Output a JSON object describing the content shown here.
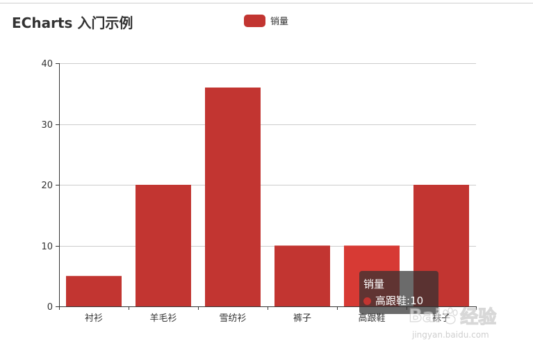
{
  "chart_data": {
    "type": "bar",
    "title": "ECharts 入门示例",
    "legend": [
      "销量"
    ],
    "legend_position": "top-center",
    "categories": [
      "衬衫",
      "羊毛衫",
      "雪纺衫",
      "裤子",
      "高跟鞋",
      "袜子"
    ],
    "series": [
      {
        "name": "销量",
        "values": [
          5,
          20,
          36,
          10,
          10,
          20
        ]
      }
    ],
    "ylim": [
      0,
      40
    ],
    "yticks": [
      0,
      10,
      20,
      30,
      40
    ],
    "grid": true,
    "colors": {
      "bar": "#c23531",
      "bar_highlight": "#d73a34"
    },
    "highlight_index": 4
  },
  "tooltip": {
    "series_name": "销量",
    "category": "高跟鞋",
    "value": "10"
  },
  "watermark": {
    "brand": "Bai",
    "brand_tail": "经验",
    "url": "jingyan.baidu.com"
  }
}
